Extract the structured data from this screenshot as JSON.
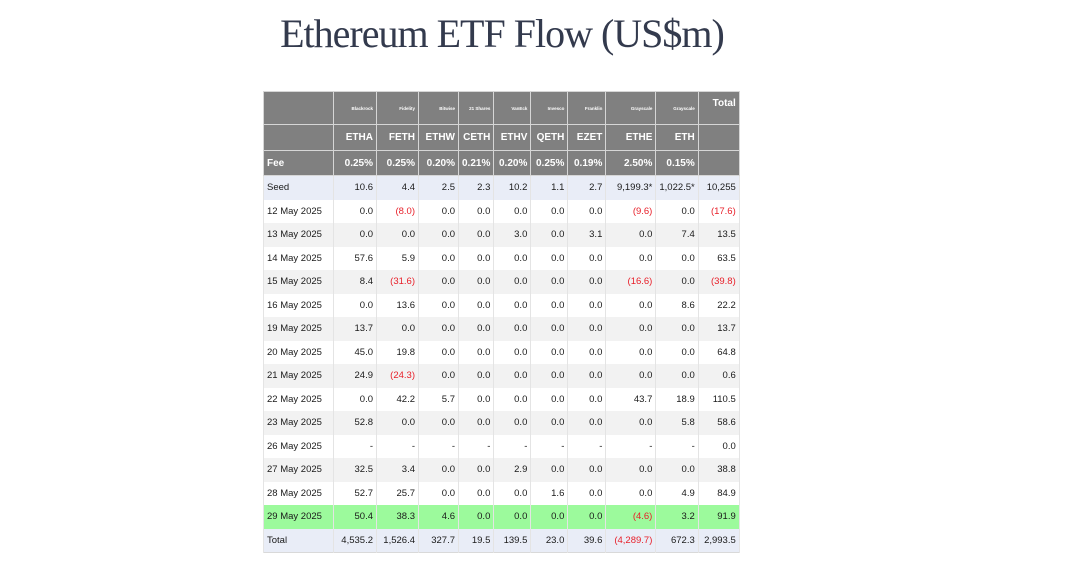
{
  "title": "Ethereum ETF Flow (US$m)",
  "colors": {
    "header_bg": "#808080",
    "highlight_row": "#9cfa9c",
    "negative": "#e8202a",
    "seed_total_bg": "#e9edf7",
    "alt_row": "#f2f2f2"
  },
  "table": {
    "issuers": [
      "Blackrock",
      "Fidelity",
      "Bitwise",
      "21 Shares",
      "VanEck",
      "Invesco",
      "Franklin",
      "Grayscale",
      "Grayscale"
    ],
    "total_label": "Total",
    "tickers": [
      "ETHA",
      "FETH",
      "ETHW",
      "CETH",
      "ETHV",
      "QETH",
      "EZET",
      "ETHE",
      "ETH"
    ],
    "fee_label": "Fee",
    "fees": [
      "0.25%",
      "0.25%",
      "0.20%",
      "0.21%",
      "0.20%",
      "0.25%",
      "0.19%",
      "2.50%",
      "0.15%"
    ],
    "rows": [
      {
        "label": "Seed",
        "values": [
          "10.6",
          "4.4",
          "2.5",
          "2.3",
          "10.2",
          "1.1",
          "2.7",
          "9,199.3*",
          "1,022.5*",
          "10,255"
        ]
      },
      {
        "label": "12 May 2025",
        "values": [
          "0.0",
          "(8.0)",
          "0.0",
          "0.0",
          "0.0",
          "0.0",
          "0.0",
          "(9.6)",
          "0.0",
          "(17.6)"
        ]
      },
      {
        "label": "13 May 2025",
        "values": [
          "0.0",
          "0.0",
          "0.0",
          "0.0",
          "3.0",
          "0.0",
          "3.1",
          "0.0",
          "7.4",
          "13.5"
        ]
      },
      {
        "label": "14 May 2025",
        "values": [
          "57.6",
          "5.9",
          "0.0",
          "0.0",
          "0.0",
          "0.0",
          "0.0",
          "0.0",
          "0.0",
          "63.5"
        ]
      },
      {
        "label": "15 May 2025",
        "values": [
          "8.4",
          "(31.6)",
          "0.0",
          "0.0",
          "0.0",
          "0.0",
          "0.0",
          "(16.6)",
          "0.0",
          "(39.8)"
        ]
      },
      {
        "label": "16 May 2025",
        "values": [
          "0.0",
          "13.6",
          "0.0",
          "0.0",
          "0.0",
          "0.0",
          "0.0",
          "0.0",
          "8.6",
          "22.2"
        ]
      },
      {
        "label": "19 May 2025",
        "values": [
          "13.7",
          "0.0",
          "0.0",
          "0.0",
          "0.0",
          "0.0",
          "0.0",
          "0.0",
          "0.0",
          "13.7"
        ]
      },
      {
        "label": "20 May 2025",
        "values": [
          "45.0",
          "19.8",
          "0.0",
          "0.0",
          "0.0",
          "0.0",
          "0.0",
          "0.0",
          "0.0",
          "64.8"
        ]
      },
      {
        "label": "21 May 2025",
        "values": [
          "24.9",
          "(24.3)",
          "0.0",
          "0.0",
          "0.0",
          "0.0",
          "0.0",
          "0.0",
          "0.0",
          "0.6"
        ]
      },
      {
        "label": "22 May 2025",
        "values": [
          "0.0",
          "42.2",
          "5.7",
          "0.0",
          "0.0",
          "0.0",
          "0.0",
          "43.7",
          "18.9",
          "110.5"
        ]
      },
      {
        "label": "23 May 2025",
        "values": [
          "52.8",
          "0.0",
          "0.0",
          "0.0",
          "0.0",
          "0.0",
          "0.0",
          "0.0",
          "5.8",
          "58.6"
        ]
      },
      {
        "label": "26 May 2025",
        "values": [
          "-",
          "-",
          "-",
          "-",
          "-",
          "-",
          "-",
          "-",
          "-",
          "0.0"
        ]
      },
      {
        "label": "27 May 2025",
        "values": [
          "32.5",
          "3.4",
          "0.0",
          "0.0",
          "2.9",
          "0.0",
          "0.0",
          "0.0",
          "0.0",
          "38.8"
        ]
      },
      {
        "label": "28 May 2025",
        "values": [
          "52.7",
          "25.7",
          "0.0",
          "0.0",
          "0.0",
          "1.6",
          "0.0",
          "0.0",
          "4.9",
          "84.9"
        ]
      },
      {
        "label": "29 May 2025",
        "values": [
          "50.4",
          "38.3",
          "4.6",
          "0.0",
          "0.0",
          "0.0",
          "0.0",
          "(4.6)",
          "3.2",
          "91.9"
        ]
      },
      {
        "label": "Total",
        "values": [
          "4,535.2",
          "1,526.4",
          "327.7",
          "19.5",
          "139.5",
          "23.0",
          "39.6",
          "(4,289.7)",
          "672.3",
          "2,993.5"
        ]
      }
    ]
  }
}
